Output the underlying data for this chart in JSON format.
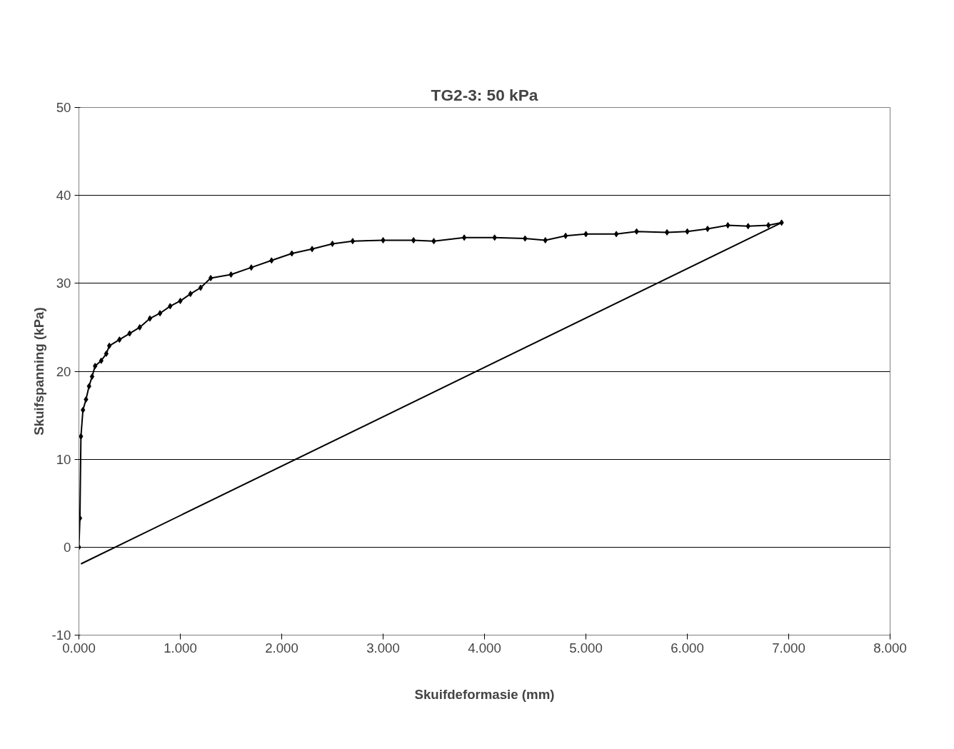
{
  "chart_data": {
    "type": "line",
    "title": "TG2-3: 50 kPa",
    "xlabel": "Skuifdeformasie (mm)",
    "ylabel": "Skuifspanning (kPa)",
    "xlim": [
      0,
      8
    ],
    "ylim": [
      -10,
      50
    ],
    "xticks": [
      {
        "value": 0,
        "label": "0.000"
      },
      {
        "value": 1,
        "label": "1.000"
      },
      {
        "value": 2,
        "label": "2.000"
      },
      {
        "value": 3,
        "label": "3.000"
      },
      {
        "value": 4,
        "label": "4.000"
      },
      {
        "value": 5,
        "label": "5.000"
      },
      {
        "value": 6,
        "label": "6.000"
      },
      {
        "value": 7,
        "label": "7.000"
      },
      {
        "value": 8,
        "label": "8.000"
      }
    ],
    "yticks": [
      -10,
      0,
      10,
      20,
      30,
      40,
      50
    ],
    "grid": "y",
    "series": [
      {
        "color": "#000000",
        "marker": "diamond",
        "x": [
          0,
          0.01,
          0.02,
          0.04,
          0.07,
          0.1,
          0.13,
          0.16,
          0.22,
          0.27,
          0.3,
          0.4,
          0.5,
          0.6,
          0.7,
          0.8,
          0.9,
          1.0,
          1.1,
          1.2,
          1.3,
          1.5,
          1.7,
          1.9,
          2.1,
          2.3,
          2.5,
          2.7,
          3.0,
          3.3,
          3.5,
          3.8,
          4.1,
          4.4,
          4.6,
          4.8,
          5.0,
          5.3,
          5.5,
          5.8,
          6.0,
          6.2,
          6.4,
          6.6,
          6.8,
          6.93
        ],
        "values": [
          0,
          3.3,
          12.6,
          15.6,
          16.8,
          18.3,
          19.4,
          20.6,
          21.2,
          22.0,
          22.9,
          23.6,
          24.3,
          25.0,
          26.0,
          26.6,
          27.4,
          28.0,
          28.8,
          29.5,
          30.6,
          31.0,
          31.8,
          32.6,
          33.4,
          33.9,
          34.5,
          34.8,
          34.9,
          34.9,
          34.8,
          35.2,
          35.2,
          35.1,
          34.9,
          35.4,
          35.6,
          35.6,
          35.9,
          35.8,
          35.9,
          36.2,
          36.6,
          36.5,
          36.6,
          36.9
        ]
      },
      {
        "color": "#000000",
        "marker": "none",
        "x": [
          0.02,
          6.93
        ],
        "values": [
          -1.9,
          36.9
        ]
      }
    ]
  }
}
